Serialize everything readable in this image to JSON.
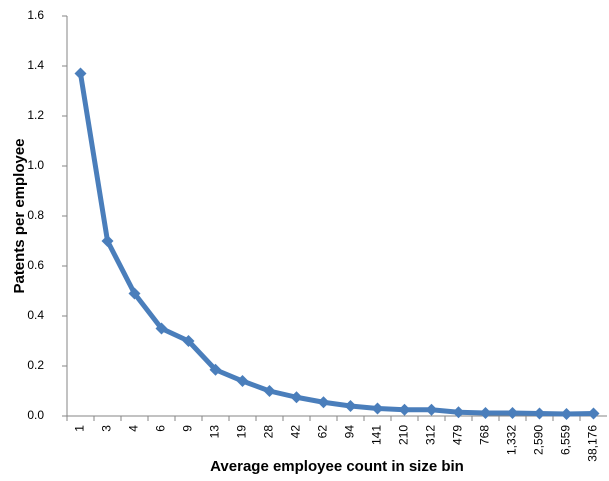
{
  "chart_data": {
    "type": "line",
    "x_label": "Average employee count in size bin",
    "y_label": "Patents per employee",
    "categories": [
      "1",
      "3",
      "4",
      "6",
      "9",
      "13",
      "19",
      "28",
      "42",
      "62",
      "94",
      "141",
      "210",
      "312",
      "479",
      "768",
      "1,332",
      "2,590",
      "6,559",
      "38,176"
    ],
    "values": [
      1.37,
      0.7,
      0.49,
      0.35,
      0.3,
      0.185,
      0.14,
      0.1,
      0.075,
      0.055,
      0.04,
      0.03,
      0.025,
      0.025,
      0.015,
      0.012,
      0.012,
      0.01,
      0.008,
      0.01
    ],
    "color": "#4a7ebb",
    "ylim": [
      0,
      1.6
    ],
    "yticks": [
      {
        "value": 0,
        "label": "0.0"
      },
      0.2,
      0.4,
      0.6,
      0.8,
      {
        "value": 1,
        "label": "1.0"
      },
      1.2,
      1.4,
      1.6
    ],
    "grid": false
  }
}
